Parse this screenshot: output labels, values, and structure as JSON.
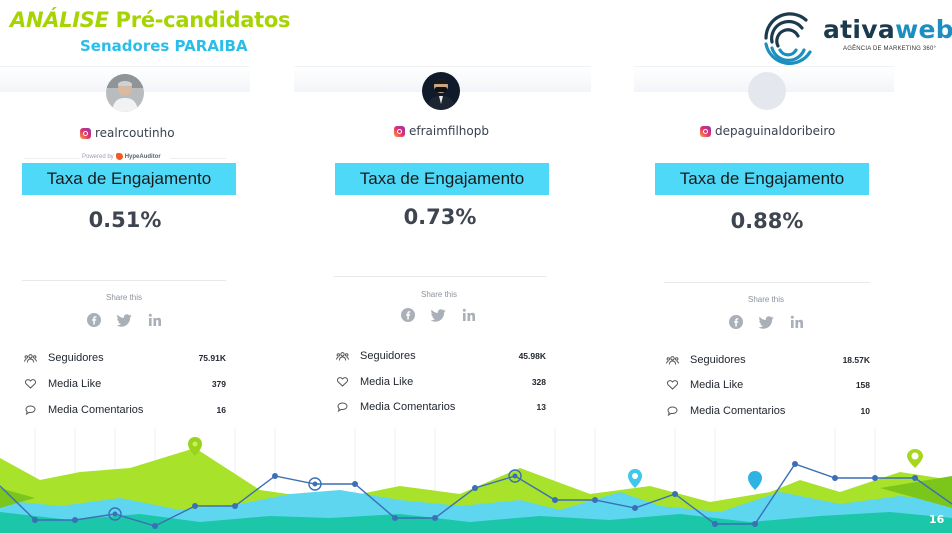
{
  "header": {
    "title_prefix": "ANÁLISE",
    "title_main": " Pré-candidatos",
    "subtitle": "Senadores PARAIBA"
  },
  "logo": {
    "name_part1": "ativa",
    "name_part2": "web",
    "tagline": "AGÊNCIA DE MARKETING 360°"
  },
  "cards": [
    {
      "handle": "realrcoutinho",
      "powered_by": "Powered by",
      "powered_brand": "HypeAuditor",
      "engagement_label": "Taxa de Engajamento",
      "engagement_rate": "0.51%",
      "share_title": "Share this",
      "stats": [
        {
          "label": "Seguidores",
          "value": "75.91K"
        },
        {
          "label": "Media Like",
          "value": "379"
        },
        {
          "label": "Media Comentarios",
          "value": "16"
        }
      ]
    },
    {
      "handle": "efraimfilhopb",
      "engagement_label": "Taxa de Engajamento",
      "engagement_rate": "0.73%",
      "share_title": "Share this",
      "stats": [
        {
          "label": "Seguidores",
          "value": "45.98K"
        },
        {
          "label": "Media Like",
          "value": "328"
        },
        {
          "label": "Media Comentarios",
          "value": "13"
        }
      ]
    },
    {
      "handle": "depaguinaldoribeiro",
      "engagement_label": "Taxa de Engajamento",
      "engagement_rate": "0.88%",
      "share_title": "Share this",
      "stats": [
        {
          "label": "Seguidores",
          "value": "18.57K"
        },
        {
          "label": "Media Like",
          "value": "158"
        },
        {
          "label": "Media Comentarios",
          "value": "10"
        }
      ]
    }
  ],
  "footer": {
    "page_number": "16"
  },
  "colors": {
    "title_green": "#a6d400",
    "subtitle_blue": "#29bdea",
    "engagement_box": "#4fd9f9",
    "logo_dark": "#1c3a4d",
    "logo_blue": "#1c8fc0"
  },
  "icons": {
    "instagram": "instagram-icon",
    "facebook": "facebook-icon",
    "twitter": "twitter-icon",
    "linkedin": "linkedin-icon",
    "followers": "users-icon",
    "likes": "heart-icon",
    "comments": "comment-icon"
  }
}
